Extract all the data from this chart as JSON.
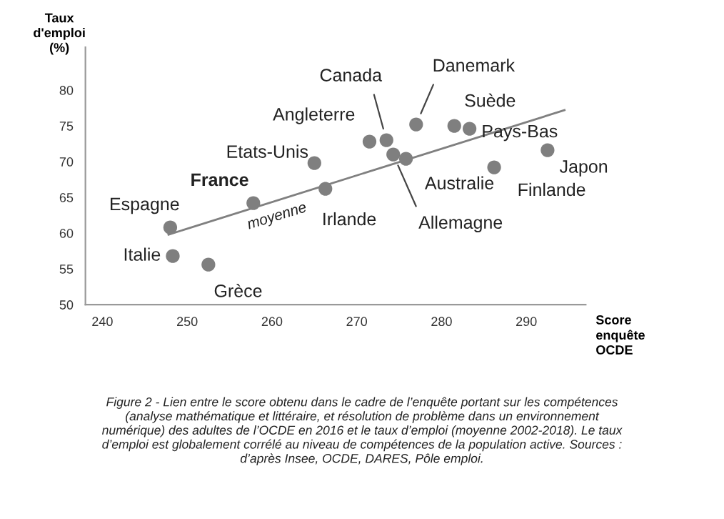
{
  "chart_data": {
    "type": "scatter",
    "xlabel": "Score\nenquête\nOCDE",
    "ylabel": "Taux\nd'emploi\n(%)",
    "xlim": [
      238,
      297
    ],
    "ylim": [
      50,
      86
    ],
    "xticks": [
      240,
      250,
      260,
      270,
      280,
      290
    ],
    "yticks": [
      50,
      55,
      60,
      65,
      70,
      75,
      80
    ],
    "grid": false,
    "legend": false,
    "series": [
      {
        "marker": "circle",
        "color": "#7f7f7f",
        "x": [
          248,
          248.3,
          252.5,
          257.8,
          265,
          266.3,
          271.5,
          273.5,
          274.3,
          275.8,
          277,
          281.5,
          283.3,
          286.2,
          292.5
        ],
        "values": [
          60.8,
          56.8,
          55.6,
          64.2,
          69.8,
          66.2,
          72.8,
          73,
          71,
          70.4,
          75.2,
          75,
          74.6,
          69.2,
          71.6
        ]
      },
      {
        "type": "line",
        "color": "#808080",
        "x": [
          247.8,
          294.5
        ],
        "values": [
          59.8,
          77.2
        ]
      }
    ],
    "annotations": [
      {
        "text": "Espagne",
        "x": 248,
        "y": 60.8
      },
      {
        "text": "Italie",
        "x": 248.3,
        "y": 56.8
      },
      {
        "text": "Grèce",
        "x": 252.5,
        "y": 55.6
      },
      {
        "text": "France",
        "x": 257.8,
        "y": 64.2
      },
      {
        "text": "Etats-Unis",
        "x": 265,
        "y": 69.8
      },
      {
        "text": "Irlande",
        "x": 266.3,
        "y": 66.2
      },
      {
        "text": "Angleterre",
        "x": 271.5,
        "y": 72.8
      },
      {
        "text": "Canada",
        "x": 273.5,
        "y": 73
      },
      {
        "text": "Allemagne",
        "x": 274.3,
        "y": 71
      },
      {
        "text": "Australie",
        "x": 275.8,
        "y": 70.4
      },
      {
        "text": "Danemark",
        "x": 277,
        "y": 75.2
      },
      {
        "text": "Suède",
        "x": 281.5,
        "y": 75
      },
      {
        "text": "Pays-Bas",
        "x": 283.3,
        "y": 74.6
      },
      {
        "text": "Finlande",
        "x": 286.2,
        "y": 69.2
      },
      {
        "text": "Japon",
        "x": 292.5,
        "y": 71.6
      },
      {
        "text": "moyenne",
        "x": 262,
        "y": 65.1
      },
      "Figure 2 - Lien entre le score obtenu dans le cadre de l’enquête portant sur les compétences\n(analyse mathématique et littéraire, et résolution de problème dans un environnement\nnumérique) des adultes de l’OCDE en 2016 et le taux d’emploi (moyenne 2002-2018). Le taux\nd’emploi est globalement corrélé au niveau de compétences de la population active. Sources :\nd’après Insee, OCDE, DARES, Pôle emploi."
    ]
  }
}
